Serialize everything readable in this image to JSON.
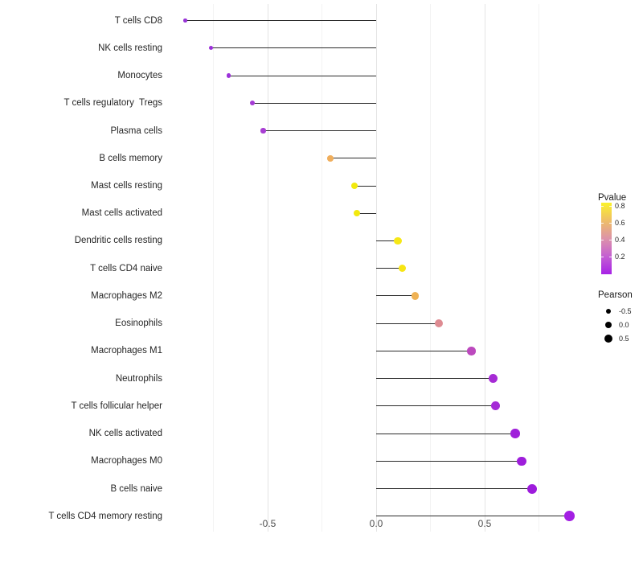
{
  "chart_data": {
    "type": "lollipop",
    "title": "",
    "xlabel": "",
    "ylabel": "",
    "x_tick_labels": [
      {
        "value": -0.5,
        "label": "-0.5"
      },
      {
        "value": 0.0,
        "label": "0.0"
      },
      {
        "value": 0.5,
        "label": "0.5"
      }
    ],
    "x_minor_gridlines": [
      -0.75,
      -0.25,
      0.25,
      0.75
    ],
    "x_major_gridlines": [
      -0.5,
      0.0,
      0.5
    ],
    "xlim": [
      -0.97,
      0.985
    ],
    "baseline": 0.0,
    "grid": true,
    "rows": [
      {
        "label": "T cells CD8",
        "pearson": -0.88,
        "color": "#9733d6"
      },
      {
        "label": "NK cells resting",
        "pearson": -0.76,
        "color": "#9b2fd9"
      },
      {
        "label": "Monocytes",
        "pearson": -0.68,
        "color": "#9c31da"
      },
      {
        "label": "T cells regulatory  Tregs",
        "pearson": -0.57,
        "color": "#a53bd5"
      },
      {
        "label": "Plasma cells",
        "pearson": -0.52,
        "color": "#a83ed3"
      },
      {
        "label": "B cells memory",
        "pearson": -0.21,
        "color": "#f0ae5c"
      },
      {
        "label": "Mast cells resting",
        "pearson": -0.1,
        "color": "#f2e90d"
      },
      {
        "label": "Mast cells activated",
        "pearson": -0.09,
        "color": "#f2e90d"
      },
      {
        "label": "Dendritic cells resting",
        "pearson": 0.1,
        "color": "#f6e716"
      },
      {
        "label": "T cells CD4 naive",
        "pearson": 0.12,
        "color": "#f7e513"
      },
      {
        "label": "Macrophages M2",
        "pearson": 0.18,
        "color": "#efb254"
      },
      {
        "label": "Eosinophils",
        "pearson": 0.29,
        "color": "#de8b92"
      },
      {
        "label": "Macrophages M1",
        "pearson": 0.44,
        "color": "#bc49be"
      },
      {
        "label": "Neutrophils",
        "pearson": 0.54,
        "color": "#a62bd5"
      },
      {
        "label": "T cells follicular helper",
        "pearson": 0.55,
        "color": "#a52cd6"
      },
      {
        "label": "NK cells activated",
        "pearson": 0.64,
        "color": "#9f20da"
      },
      {
        "label": "Macrophages M0",
        "pearson": 0.67,
        "color": "#9e1edb"
      },
      {
        "label": "B cells naive",
        "pearson": 0.72,
        "color": "#9d1bdc"
      },
      {
        "label": "T cells CD4 memory resting",
        "pearson": 0.89,
        "color": "#a31fe3"
      }
    ]
  },
  "legend": {
    "pvalue": {
      "title": "Pvalue",
      "ticks": [
        "0.8",
        "0.6",
        "0.4",
        "0.2"
      ],
      "gradient_top_to_bottom": [
        "#fbf22a",
        "#eebe67",
        "#dd93a9",
        "#c45fd2",
        "#a722e6"
      ]
    },
    "pearson": {
      "title": "Pearson",
      "items": [
        {
          "label": "-0.5",
          "size": 6.6
        },
        {
          "label": "0.0",
          "size": 8.6
        },
        {
          "label": "0.5",
          "size": 10.4
        }
      ],
      "dot_color": "#000000"
    }
  }
}
